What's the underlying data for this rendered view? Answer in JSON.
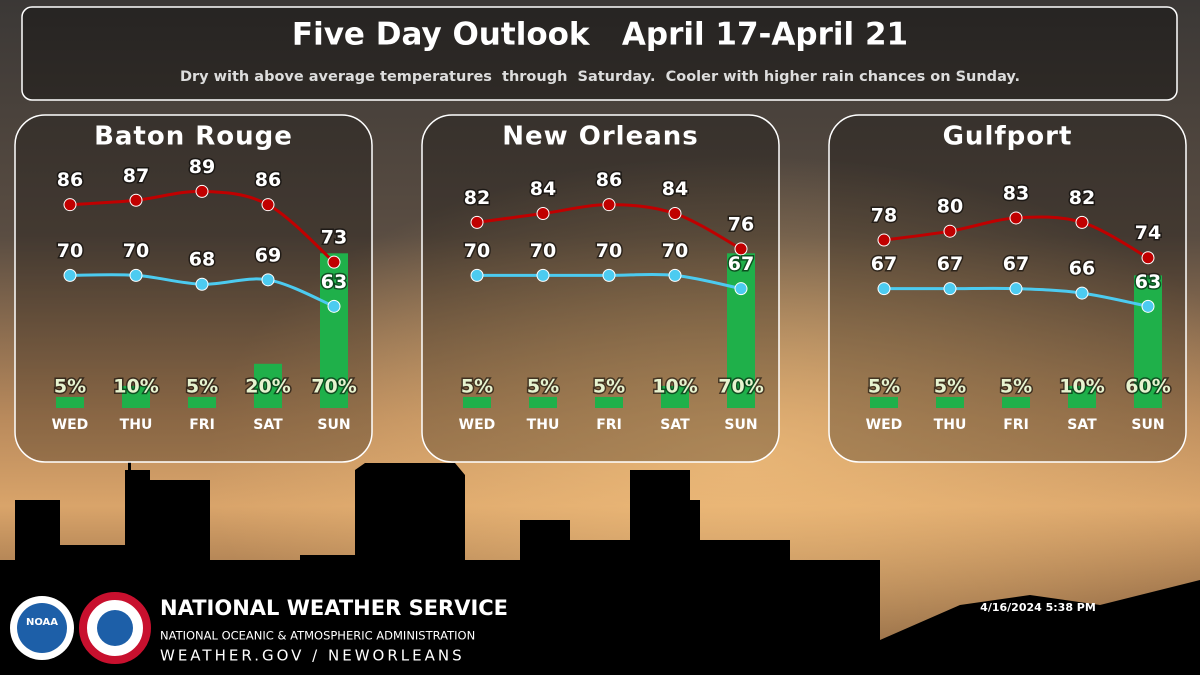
{
  "header": {
    "title": "Five Day Outlook   April 17-April 21",
    "subtitle": "Dry with above average temperatures  through  Saturday.  Cooler with higher rain chances on Sunday."
  },
  "chart_data": [
    {
      "type": "line",
      "title": "Baton Rouge",
      "categories": [
        "WED",
        "THU",
        "FRI",
        "SAT",
        "SUN"
      ],
      "ylim": [
        40,
        90
      ],
      "y2lim": [
        0,
        100
      ],
      "series": [
        {
          "type": "bar",
          "axis": "y2",
          "color": "#1fb04a",
          "values": [
            5,
            10,
            5,
            20,
            70
          ],
          "value_labels": [
            "5%",
            "10%",
            "5%",
            "20%",
            "70%"
          ]
        },
        {
          "color": "#c00000",
          "values": [
            86,
            87,
            89,
            86,
            73
          ]
        },
        {
          "color": "#4ccbf0",
          "values": [
            70,
            70,
            68,
            69,
            63
          ]
        }
      ]
    },
    {
      "type": "line",
      "title": "New Orleans",
      "categories": [
        "WED",
        "THU",
        "FRI",
        "SAT",
        "SUN"
      ],
      "ylim": [
        40,
        90
      ],
      "y2lim": [
        0,
        100
      ],
      "series": [
        {
          "type": "bar",
          "axis": "y2",
          "color": "#1fb04a",
          "values": [
            5,
            5,
            5,
            10,
            70
          ],
          "value_labels": [
            "5%",
            "5%",
            "5%",
            "10%",
            "70%"
          ]
        },
        {
          "color": "#c00000",
          "values": [
            82,
            84,
            86,
            84,
            76
          ]
        },
        {
          "color": "#4ccbf0",
          "values": [
            70,
            70,
            70,
            70,
            67
          ]
        }
      ]
    },
    {
      "type": "line",
      "title": "Gulfport",
      "categories": [
        "WED",
        "THU",
        "FRI",
        "SAT",
        "SUN"
      ],
      "ylim": [
        40,
        90
      ],
      "y2lim": [
        0,
        100
      ],
      "series": [
        {
          "type": "bar",
          "axis": "y2",
          "color": "#1fb04a",
          "values": [
            5,
            5,
            5,
            10,
            60
          ],
          "value_labels": [
            "5%",
            "5%",
            "5%",
            "10%",
            "60%"
          ]
        },
        {
          "color": "#c00000",
          "values": [
            78,
            80,
            83,
            82,
            74
          ]
        },
        {
          "color": "#4ccbf0",
          "values": [
            67,
            67,
            67,
            66,
            63
          ]
        }
      ]
    }
  ],
  "footer": {
    "agency": "NATIONAL WEATHER SERVICE",
    "parent": "NATIONAL OCEANIC & ATMOSPHERIC ADMINISTRATION",
    "url": "WEATHER.GOV / NEWORLEANS",
    "timestamp": "4/16/2024 5:38 PM",
    "logo": "NOAA"
  }
}
